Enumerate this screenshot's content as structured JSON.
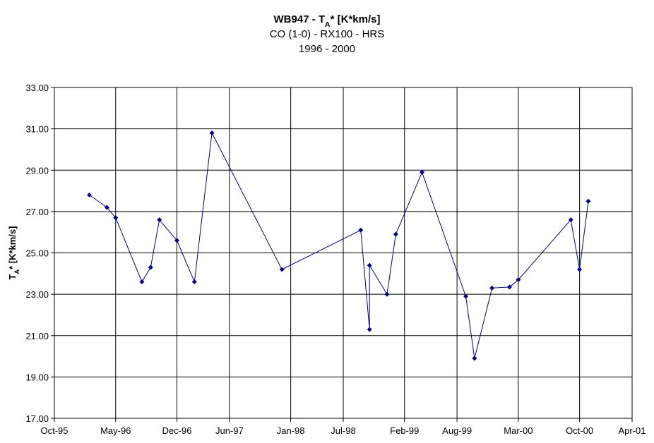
{
  "chart_data": {
    "type": "line",
    "title": [
      {
        "main": "WB947 - T",
        "sub": "A",
        "rest": "* [K*km/s]"
      },
      {
        "main": "CO (1-0) - RX100 - HRS"
      },
      {
        "main": "1996 - 2000"
      }
    ],
    "y_label": {
      "main": "T",
      "sub": "A",
      "rest": "* [K*km/s]"
    },
    "x": [
      "1996-02",
      "1996-04",
      "1996-05",
      "1996-08",
      "1996-09",
      "1996-10",
      "1996-12",
      "1997-02",
      "1997-04",
      "1997-12",
      "1998-09",
      "1998-10",
      "1998-10",
      "1998-12",
      "1999-01",
      "1999-04",
      "1999-09",
      "1999-10",
      "1999-12",
      "2000-02",
      "2000-03",
      "2000-09",
      "2000-10",
      "2000-11"
    ],
    "series": [
      {
        "color": "#000080",
        "values": [
          27.8,
          27.2,
          26.7,
          23.6,
          24.3,
          26.6,
          25.6,
          23.6,
          30.8,
          24.2,
          26.1,
          21.3,
          24.4,
          23.0,
          25.9,
          28.9,
          22.9,
          19.9,
          23.3,
          23.35,
          23.7,
          26.6,
          24.2,
          27.5
        ]
      }
    ],
    "xlim": [
      "1995-10",
      "2001-04"
    ],
    "xticks": [
      {
        "value": "1995-10",
        "label": "Oct-95"
      },
      {
        "value": "1996-05",
        "label": "May-96"
      },
      {
        "value": "1996-12",
        "label": "Dec-96"
      },
      {
        "value": "1997-06",
        "label": "Jun-97"
      },
      {
        "value": "1998-01",
        "label": "Jan-98"
      },
      {
        "value": "1998-07",
        "label": "Jul-98"
      },
      {
        "value": "1999-02",
        "label": "Feb-99"
      },
      {
        "value": "1999-08",
        "label": "Aug-99"
      },
      {
        "value": "2000-03",
        "label": "Mar-00"
      },
      {
        "value": "2000-10",
        "label": "Oct-00"
      },
      {
        "value": "2001-04",
        "label": "Apr-01"
      }
    ],
    "ylim": [
      17,
      33
    ],
    "yticks": [
      {
        "value": 17,
        "label": "17.00"
      },
      {
        "value": 19,
        "label": "19.00"
      },
      {
        "value": 21,
        "label": "21.00"
      },
      {
        "value": 23,
        "label": "23.00"
      },
      {
        "value": 25,
        "label": "25.00"
      },
      {
        "value": 27,
        "label": "27.00"
      },
      {
        "value": 29,
        "label": "29.00"
      },
      {
        "value": 31,
        "label": "31.00"
      },
      {
        "value": 33,
        "label": "33.00"
      }
    ],
    "grid": true
  }
}
